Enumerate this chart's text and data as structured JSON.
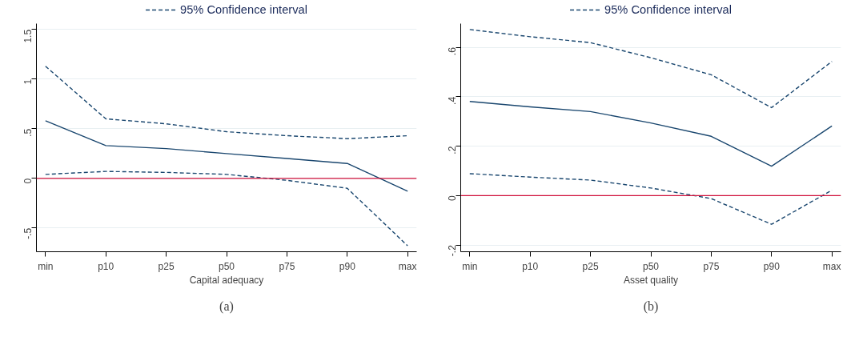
{
  "chart_data": [
    {
      "type": "line",
      "xlabel": "Capital adequacy",
      "categories": [
        "min",
        "p10",
        "p25",
        "p50",
        "p75",
        "p90",
        "max"
      ],
      "ylim": [
        -0.74,
        1.56
      ],
      "yticks": [
        {
          "value": -0.5,
          "label": "-.5"
        },
        0,
        {
          "value": 0.5,
          "label": ".5"
        },
        1,
        1.5
      ],
      "grid": "y",
      "legend": "top",
      "series": [
        {
          "color": "#1a476f",
          "line_style": "solid",
          "values": [
            0.58,
            0.33,
            0.3,
            0.25,
            0.2,
            0.15,
            -0.13
          ]
        },
        {
          "name": "95% Confidence interval",
          "color": "#1a476f",
          "line_style": "dashed",
          "values": [
            1.13,
            0.6,
            0.55,
            0.47,
            0.43,
            0.4,
            0.43
          ]
        },
        {
          "name": "95% Confidence interval",
          "color": "#1a476f",
          "line_style": "dashed",
          "values": [
            0.04,
            0.07,
            0.06,
            0.04,
            -0.02,
            -0.1,
            -0.68
          ]
        }
      ],
      "ref_lines": [
        {
          "axis": "y",
          "value": 0,
          "color": "#d0103a"
        }
      ],
      "annotations": [
        "(a)"
      ]
    },
    {
      "type": "line",
      "xlabel": "Asset quality",
      "categories": [
        "min",
        "p10",
        "p25",
        "p50",
        "p75",
        "p90",
        "max"
      ],
      "ylim": [
        -0.227,
        0.696
      ],
      "yticks": [
        {
          "value": -0.2,
          "label": "-.2"
        },
        0,
        {
          "value": 0.2,
          "label": ".2"
        },
        {
          "value": 0.4,
          "label": ".4"
        },
        {
          "value": 0.6,
          "label": ".6"
        }
      ],
      "grid": "y",
      "legend": "top",
      "series": [
        {
          "color": "#1a476f",
          "line_style": "solid",
          "values": [
            0.381,
            0.359,
            0.34,
            0.294,
            0.24,
            0.119,
            0.282
          ]
        },
        {
          "name": "95% Confidence interval",
          "color": "#1a476f",
          "line_style": "dashed",
          "values": [
            0.672,
            0.643,
            0.619,
            0.558,
            0.489,
            0.356,
            0.543
          ]
        },
        {
          "name": "95% Confidence interval",
          "color": "#1a476f",
          "line_style": "dashed",
          "values": [
            0.089,
            0.075,
            0.063,
            0.031,
            -0.012,
            -0.116,
            0.022
          ]
        }
      ],
      "ref_lines": [
        {
          "axis": "y",
          "value": 0,
          "color": "#d0103a"
        }
      ],
      "annotations": [
        "(b)"
      ]
    }
  ]
}
